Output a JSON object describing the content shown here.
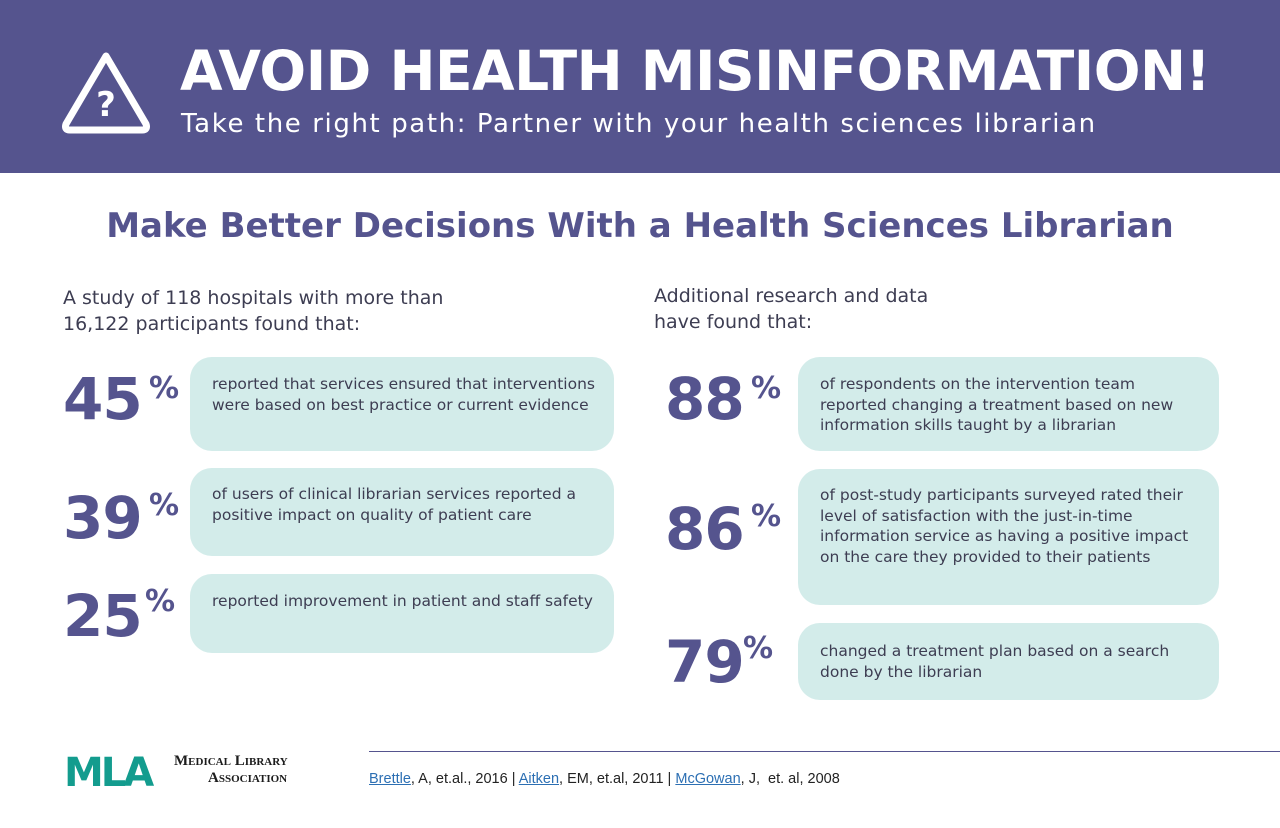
{
  "banner": {
    "title": "AVOID HEALTH MISINFORMATION!",
    "subtitle": "Take the right path: Partner with your health sciences librarian",
    "icon": "warning-question-icon",
    "icon_glyph": "?"
  },
  "section_title": "Make Better Decisions With a Health Sciences Librarian",
  "left": {
    "intro": "A study of 118 hospitals with more than 16,122 participants found that:",
    "stats": [
      {
        "number": "45",
        "pct": "%",
        "text": "reported that services ensured that interventions were based on best practice or current evidence"
      },
      {
        "number": "39",
        "pct": "%",
        "text": "of users of clinical librarian services reported a positive impact on quality of patient care"
      },
      {
        "number": "25",
        "pct": "%",
        "text": "reported improvement in patient and staff safety"
      }
    ]
  },
  "right": {
    "intro": "Additional research and data have found that:",
    "stats": [
      {
        "number": "88",
        "pct": "%",
        "text": "of respondents on the intervention team reported changing a treatment based on new information skills taught by a librarian"
      },
      {
        "number": "86",
        "pct": "%",
        "text": "of post-study participants surveyed rated their level of satisfaction with the just-in-time information service as having a positive impact on the care they provided to their patients"
      },
      {
        "number": "79",
        "pct": "%",
        "text": "changed a treatment plan based on a search done by the librarian"
      }
    ]
  },
  "footer": {
    "logo_mark": "MLA",
    "logo_line1": "Medical Library",
    "logo_line2": "Association",
    "citations": [
      {
        "link": "Brettle",
        "rest": ", A, et.al., 2016"
      },
      {
        "link": "Aitken",
        "rest": ", EM, et.al, 2011"
      },
      {
        "link": "McGowan",
        "rest": ", J,  et. al, 2008"
      }
    ],
    "separator": " | "
  },
  "colors": {
    "brand_purple": "#55548e",
    "box_teal": "#d3ecea",
    "logo_teal": "#139c8e",
    "link_blue": "#2c6fb3"
  }
}
